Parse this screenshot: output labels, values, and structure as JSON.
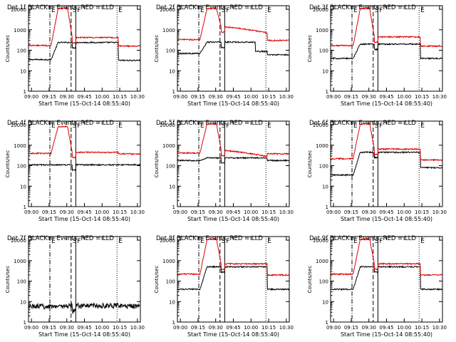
{
  "colors": {
    "events": "#000000",
    "lld": "#dd0000",
    "axis": "#000000"
  },
  "chart_data": [
    {
      "type": "line",
      "title": "Det 1f BLACK = Events, RED = LLD",
      "xlabel": "Start Time (15-Oct-14 08:55:40)",
      "ylabel": "Counts/sec",
      "ylog": true,
      "ylim": [
        1,
        15000
      ],
      "yticks": [
        "1",
        "10",
        "100",
        "1000",
        "10000"
      ],
      "xticks": [
        "09:00",
        "09:15",
        "09:30",
        "09:45",
        "10:00",
        "10:15",
        "10:30"
      ],
      "markers": [
        "E",
        "S",
        "F",
        "E"
      ],
      "series": [
        {
          "name": "Events",
          "profile": {
            "base": 35,
            "mid": 240,
            "after": 32,
            "peak": 240,
            "decay": "none"
          }
        },
        {
          "name": "LLD",
          "profile": {
            "base": 170,
            "mid": 420,
            "after": 160,
            "peak": 11000,
            "decay": "none"
          }
        }
      ]
    },
    {
      "type": "line",
      "title": "Det 2f BLACK = Events, RED = LLD",
      "xlabel": "Start Time (15-Oct-14 08:55:40)",
      "ylabel": "Counts/sec",
      "ylog": true,
      "ylim": [
        1,
        15000
      ],
      "yticks": [
        "1",
        "10",
        "100",
        "1000",
        "10000"
      ],
      "xticks": [
        "09:00",
        "09:15",
        "09:30",
        "09:45",
        "10:00",
        "10:15",
        "10:30"
      ],
      "markers": [
        "E",
        "S",
        "F",
        "E"
      ],
      "series": [
        {
          "name": "Events",
          "profile": {
            "base": 70,
            "mid": 250,
            "after": 60,
            "peak": 250,
            "decay": "step"
          }
        },
        {
          "name": "LLD",
          "profile": {
            "base": 330,
            "mid": 1400,
            "after": 300,
            "peak": 11000,
            "decay": "slope"
          }
        }
      ]
    },
    {
      "type": "line",
      "title": "Det 3f BLACK = Events, RED = LLD",
      "xlabel": "Start Time (15-Oct-14 08:55:40)",
      "ylabel": "Counts/sec",
      "ylog": true,
      "ylim": [
        1,
        15000
      ],
      "yticks": [
        "1",
        "10",
        "100",
        "1000",
        "10000"
      ],
      "xticks": [
        "09:00",
        "09:15",
        "09:30",
        "09:45",
        "10:00",
        "10:15",
        "10:30"
      ],
      "markers": [
        "E",
        "S",
        "F",
        "E"
      ],
      "series": [
        {
          "name": "Events",
          "profile": {
            "base": 40,
            "mid": 200,
            "after": 40,
            "peak": 200,
            "decay": "none"
          }
        },
        {
          "name": "LLD",
          "profile": {
            "base": 170,
            "mid": 450,
            "after": 160,
            "peak": 11000,
            "decay": "none"
          }
        }
      ]
    },
    {
      "type": "line",
      "title": "Det 4f BLACK = Events, RED = LLD",
      "xlabel": "Start Time (15-Oct-14 08:55:40)",
      "ylabel": "Counts/sec",
      "ylog": true,
      "ylim": [
        1,
        15000
      ],
      "yticks": [
        "1",
        "10",
        "100",
        "1000",
        "10000"
      ],
      "xticks": [
        "09:00",
        "09:15",
        "09:30",
        "09:45",
        "10:00",
        "10:15",
        "10:30"
      ],
      "markers": [
        "E",
        "S",
        "F",
        "E"
      ],
      "series": [
        {
          "name": "Events",
          "profile": {
            "base": 110,
            "mid": 110,
            "after": 110,
            "peak": 110,
            "decay": "none"
          }
        },
        {
          "name": "LLD",
          "profile": {
            "base": 400,
            "mid": 450,
            "after": 380,
            "peak": 8000,
            "decay": "none"
          }
        }
      ]
    },
    {
      "type": "line",
      "title": "Det 5f BLACK = Events, RED = LLD",
      "xlabel": "Start Time (15-Oct-14 08:55:40)",
      "ylabel": "Counts/sec",
      "ylog": true,
      "ylim": [
        1,
        15000
      ],
      "yticks": [
        "1",
        "10",
        "100",
        "1000",
        "10000"
      ],
      "xticks": [
        "09:00",
        "09:15",
        "09:30",
        "09:45",
        "10:00",
        "10:15",
        "10:30"
      ],
      "markers": [
        "E",
        "S",
        "F",
        "E"
      ],
      "series": [
        {
          "name": "Events",
          "profile": {
            "base": 180,
            "mid": 240,
            "after": 180,
            "peak": 240,
            "decay": "none"
          }
        },
        {
          "name": "LLD",
          "profile": {
            "base": 420,
            "mid": 560,
            "after": 380,
            "peak": 11000,
            "decay": "slope"
          }
        }
      ]
    },
    {
      "type": "line",
      "title": "Det 6f BLACK = Events, RED = LLD",
      "xlabel": "Start Time (15-Oct-14 08:55:40)",
      "ylabel": "Counts/sec",
      "ylog": true,
      "ylim": [
        1,
        15000
      ],
      "yticks": [
        "1",
        "10",
        "100",
        "1000",
        "10000"
      ],
      "xticks": [
        "09:00",
        "09:15",
        "09:30",
        "09:45",
        "10:00",
        "10:15",
        "10:30"
      ],
      "markers": [
        "E",
        "S",
        "F",
        "E"
      ],
      "series": [
        {
          "name": "Events",
          "profile": {
            "base": 35,
            "mid": 450,
            "after": 80,
            "peak": 450,
            "decay": "none"
          }
        },
        {
          "name": "LLD",
          "profile": {
            "base": 220,
            "mid": 650,
            "after": 190,
            "peak": 11000,
            "decay": "none"
          }
        }
      ]
    },
    {
      "type": "line",
      "title": "Det 7f BLACK = Events, RED = LLD",
      "xlabel": "Start Time (15-Oct-14 08:55:40)",
      "ylabel": "Counts/sec",
      "ylog": true,
      "ylim": [
        1,
        15000
      ],
      "yticks": [
        "1",
        "10",
        "100",
        "1000",
        "10000"
      ],
      "xticks": [
        "09:00",
        "09:15",
        "09:30",
        "09:45",
        "10:00",
        "10:15",
        "10:30"
      ],
      "markers": [
        "E",
        "S",
        "F",
        "E"
      ],
      "series": [
        {
          "name": "Events",
          "profile": {
            "base": 6,
            "mid": 6.5,
            "after": 6,
            "peak": 6,
            "decay": "none"
          }
        }
      ]
    },
    {
      "type": "line",
      "title": "Det 8f BLACK = Events, RED = LLD",
      "xlabel": "Start Time (15-Oct-14 08:55:40)",
      "ylabel": "Counts/sec",
      "ylog": true,
      "ylim": [
        1,
        15000
      ],
      "yticks": [
        "1",
        "10",
        "100",
        "1000",
        "10000"
      ],
      "xticks": [
        "09:00",
        "09:15",
        "09:30",
        "09:45",
        "10:00",
        "10:15",
        "10:30"
      ],
      "markers": [
        "E",
        "S",
        "F",
        "E"
      ],
      "series": [
        {
          "name": "Events",
          "profile": {
            "base": 40,
            "mid": 500,
            "after": 40,
            "peak": 500,
            "decay": "none"
          }
        },
        {
          "name": "LLD",
          "profile": {
            "base": 220,
            "mid": 700,
            "after": 200,
            "peak": 11000,
            "decay": "none"
          }
        }
      ]
    },
    {
      "type": "line",
      "title": "Det 9f BLACK = Events, RED = LLD",
      "xlabel": "Start Time (15-Oct-14 08:55:40)",
      "ylabel": "Counts/sec",
      "ylog": true,
      "ylim": [
        1,
        15000
      ],
      "yticks": [
        "1",
        "10",
        "100",
        "1000",
        "10000"
      ],
      "xticks": [
        "09:00",
        "09:15",
        "09:30",
        "09:45",
        "10:00",
        "10:15",
        "10:30"
      ],
      "markers": [
        "E",
        "S",
        "F",
        "E"
      ],
      "series": [
        {
          "name": "Events",
          "profile": {
            "base": 40,
            "mid": 500,
            "after": 40,
            "peak": 500,
            "decay": "none"
          }
        },
        {
          "name": "LLD",
          "profile": {
            "base": 220,
            "mid": 700,
            "after": 200,
            "peak": 11000,
            "decay": "none"
          }
        }
      ]
    }
  ]
}
